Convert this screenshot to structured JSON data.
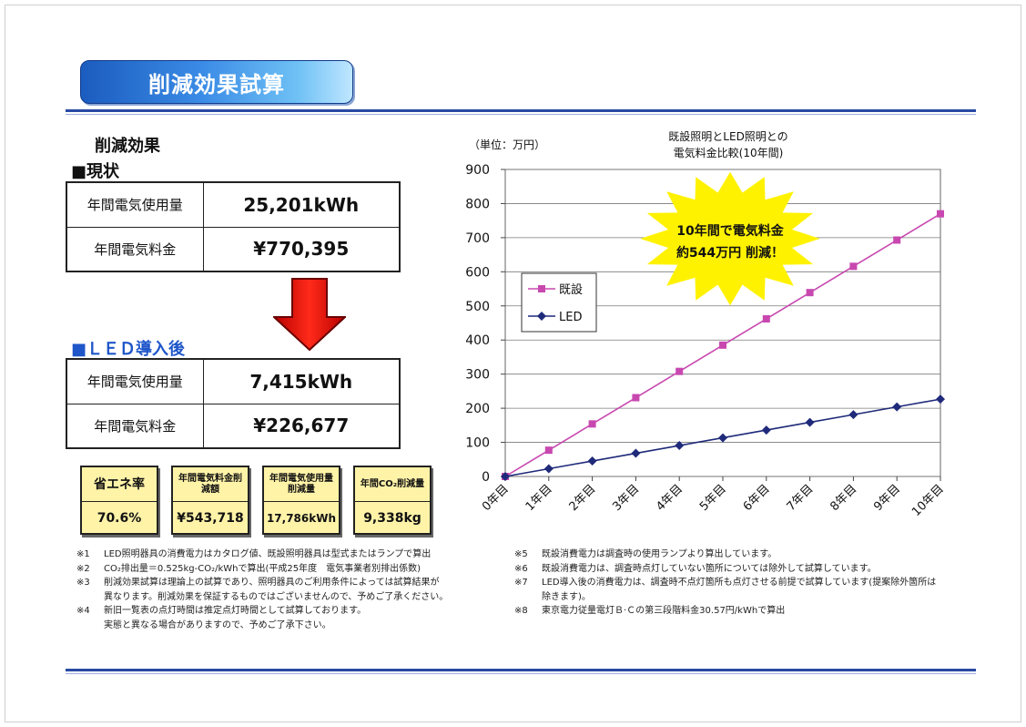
{
  "header": {
    "title": "削減効果試算"
  },
  "section_heading": "削減効果",
  "current": {
    "label": "■現状",
    "rows": [
      {
        "key": "年間電気使用量",
        "value": "25,201kWh"
      },
      {
        "key": "年間電気料金",
        "value": "¥770,395"
      }
    ]
  },
  "after": {
    "label": "■ＬＥＤ導入後",
    "rows": [
      {
        "key": "年間電気使用量",
        "value": "7,415kWh"
      },
      {
        "key": "年間電気料金",
        "value": "¥226,677"
      }
    ]
  },
  "metrics": [
    {
      "label": "省エネ率",
      "value": "70.6%"
    },
    {
      "label": "年間電気料金削減額",
      "value": "¥543,718"
    },
    {
      "label": "年間電気使用量削減量",
      "value": "17,786kWh"
    },
    {
      "label": "年間CO₂削減量",
      "value": "9,338kg"
    }
  ],
  "notes_left": [
    {
      "mark": "※1",
      "text": "LED照明器具の消費電力はカタログ値、既設照明器具は型式またはランプで算出"
    },
    {
      "mark": "※2",
      "text": "CO₂排出量＝0.525kg-CO₂/kWhで算出(平成25年度　電気事業者別排出係数)"
    },
    {
      "mark": "※3",
      "text": "削減効果試算は理論上の試算であり、照明器具のご利用条件によっては試算結果が"
    },
    {
      "mark": "",
      "text": "異なります。削減効果を保証するものではございませんので、予めご了承ください。"
    },
    {
      "mark": "※4",
      "text": "新旧一覧表の点灯時間は推定点灯時間として試算しております。"
    },
    {
      "mark": "",
      "text": "実態と異なる場合がありますので、予めご了承下さい。"
    }
  ],
  "notes_right": [
    {
      "mark": "※5",
      "text": "既設消費電力は調査時の使用ランプより算出しています。"
    },
    {
      "mark": "※6",
      "text": "既設消費電力は、調査時点灯していない箇所については除外して試算しています。"
    },
    {
      "mark": "※7",
      "text": "LED導入後の消費電力は、調査時不点灯箇所も点灯させる前提で試算しています(提案除外箇所は"
    },
    {
      "mark": "",
      "text": "除きます)。"
    },
    {
      "mark": "※8",
      "text": "東京電力従量電灯Ｂ·Ｃの第三段階料金30.57円/kWhで算出"
    }
  ],
  "chart_data": {
    "type": "line",
    "title": "既設照明とLED照明との電気料金比較(10年間)",
    "title_lines": [
      "既設照明とLED照明との",
      "電気料金比較(10年間)"
    ],
    "unit_label": "（単位：万円）",
    "categories": [
      "0年目",
      "1年目",
      "2年目",
      "3年目",
      "4年目",
      "5年目",
      "6年目",
      "7年目",
      "8年目",
      "9年目",
      "10年目"
    ],
    "series": [
      {
        "name": "既設",
        "color": "#c848b0",
        "marker": "square",
        "values": [
          0,
          77,
          154,
          231,
          308,
          385,
          462,
          539,
          616,
          693,
          770
        ]
      },
      {
        "name": "LED",
        "color": "#1f2a7a",
        "marker": "diamond",
        "values": [
          0,
          22.7,
          45.3,
          68,
          90.7,
          113.3,
          136,
          158.7,
          181.3,
          204,
          226.7
        ]
      }
    ],
    "ylim": [
      0,
      900
    ],
    "yticks": [
      0,
      100,
      200,
      300,
      400,
      500,
      600,
      700,
      800,
      900
    ],
    "grid": true,
    "legend_position": "left",
    "annotation": {
      "lines": [
        "10年間で電気料金",
        "約544万円 削減！"
      ],
      "color": "#fff200"
    }
  }
}
